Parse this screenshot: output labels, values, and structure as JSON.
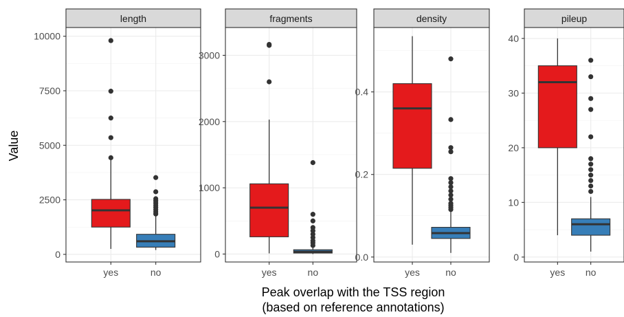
{
  "chart_data": {
    "type": "box",
    "ylabel": "Value",
    "xlabel_lines": [
      "Peak overlap with the TSS region",
      "(based on reference annotations)"
    ],
    "categories": [
      "yes",
      "no"
    ],
    "colors": {
      "yes": "#e41a1c",
      "no": "#377eb8"
    },
    "facets": [
      {
        "name": "length",
        "ylim": [
          -350,
          10400
        ],
        "yticks": [
          0,
          2500,
          5000,
          7500,
          10000
        ],
        "boxes": [
          {
            "category": "yes",
            "lower_whisker": 250,
            "q1": 1250,
            "median": 2020,
            "q3": 2520,
            "upper_whisker": 4350,
            "outliers": [
              4430,
              5350,
              6250,
              7480,
              9800
            ]
          },
          {
            "category": "no",
            "lower_whisker": 200,
            "q1": 330,
            "median": 600,
            "q3": 920,
            "upper_whisker": 1800,
            "outliers": [
              1850,
              1950,
              2050,
              2150,
              2250,
              2350,
              2450,
              2550,
              2870,
              3520
            ]
          }
        ]
      },
      {
        "name": "fragments",
        "ylim": [
          -120,
          3420
        ],
        "yticks": [
          0,
          1000,
          2000,
          3000
        ],
        "boxes": [
          {
            "category": "yes",
            "lower_whisker": 10,
            "q1": 260,
            "median": 700,
            "q3": 1060,
            "upper_whisker": 2030,
            "outliers": [
              2600,
              3150,
              3165
            ]
          },
          {
            "category": "no",
            "lower_whisker": 0,
            "q1": 15,
            "median": 35,
            "q3": 65,
            "upper_whisker": 110,
            "outliers": [
              130,
              170,
              200,
              250,
              300,
              350,
              400,
              500,
              600,
              1380
            ]
          }
        ]
      },
      {
        "name": "density",
        "ylim": [
          -0.012,
          0.556
        ],
        "yticks": [
          0.0,
          0.2,
          0.4
        ],
        "tick_decimals": 1,
        "boxes": [
          {
            "category": "yes",
            "lower_whisker": 0.03,
            "q1": 0.215,
            "median": 0.36,
            "q3": 0.42,
            "upper_whisker": 0.535,
            "outliers": []
          },
          {
            "category": "no",
            "lower_whisker": 0.01,
            "q1": 0.045,
            "median": 0.058,
            "q3": 0.072,
            "upper_whisker": 0.11,
            "outliers": [
              0.115,
              0.12,
              0.125,
              0.13,
              0.14,
              0.15,
              0.16,
              0.17,
              0.18,
              0.19,
              0.255,
              0.265,
              0.333,
              0.48
            ]
          }
        ]
      },
      {
        "name": "pileup",
        "ylim": [
          -0.9,
          42
        ],
        "yticks": [
          0,
          10,
          20,
          30,
          40
        ],
        "boxes": [
          {
            "category": "yes",
            "lower_whisker": 4,
            "q1": 20,
            "median": 32,
            "q3": 35,
            "upper_whisker": 40,
            "outliers": []
          },
          {
            "category": "no",
            "lower_whisker": 1,
            "q1": 4,
            "median": 6,
            "q3": 7,
            "upper_whisker": 11,
            "outliers": [
              12,
              13,
              14,
              15,
              16,
              17,
              18,
              22,
              27,
              29,
              33,
              36
            ]
          }
        ]
      }
    ]
  }
}
